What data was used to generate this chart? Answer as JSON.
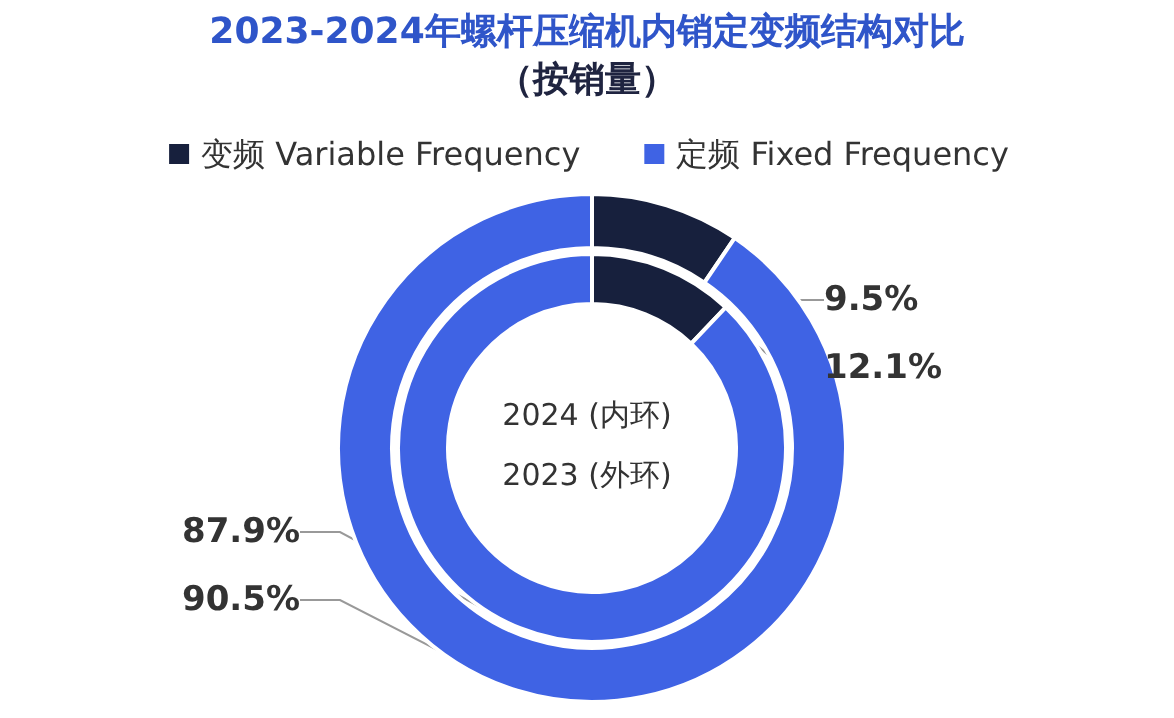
{
  "chart_data": {
    "type": "donut",
    "title": "2023-2024年螺杆压缩机内销定变频结构对比",
    "subtitle": "（按销量）",
    "categories": [
      "变频 Variable Frequency",
      "定频 Fixed Frequency"
    ],
    "colors": [
      "#17203d",
      "#3f63e4"
    ],
    "series": [
      {
        "values": [
          12.1,
          87.9
        ],
        "value_labels": [
          "12.1%",
          "87.9%"
        ]
      },
      {
        "values": [
          9.5,
          90.5
        ],
        "value_labels": [
          "9.5%",
          "90.5%"
        ]
      }
    ],
    "annotations": [
      "2024 (内环)",
      "2023 (外环)"
    ],
    "legend": "top"
  }
}
